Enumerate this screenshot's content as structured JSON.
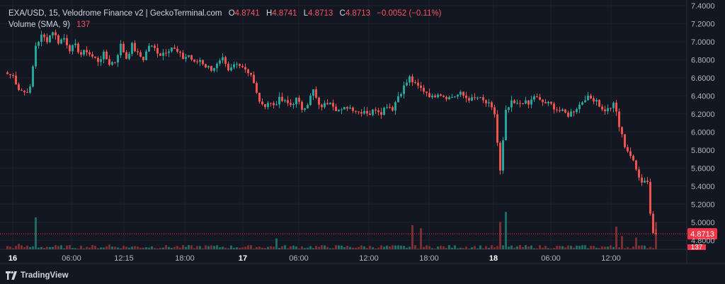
{
  "legend": {
    "symbol": "EXA/USD, 15, Velodrome Finance v2 | GeckoTerminal.com",
    "open_label": "O",
    "open": "4.8741",
    "high_label": "H",
    "high": "4.8741",
    "low_label": "L",
    "low": "4.8713",
    "close_label": "C",
    "close": "4.8713",
    "change": "−0.0052 (−0.11%)",
    "volume_label": "Volume (SMA, 9)",
    "volume_value": "137"
  },
  "footer": {
    "brand": "TradingView",
    "logo_icon": "tradingview-logo-icon"
  },
  "colors": {
    "background": "#131722",
    "grid": "#1e222d",
    "up": "#26a69a",
    "down": "#ef5350",
    "up_volume": "#1f6b64",
    "down_volume": "#7a2e33",
    "text": "#d1d4dc",
    "axis_text": "#b2b5be",
    "last_price": "#f23645"
  },
  "chart_data": {
    "type": "candlestick",
    "x_ticks": [
      "16",
      "06:00",
      "12:15",
      "18:00",
      "17",
      "06:00",
      "12:00",
      "18:00",
      "18",
      "06:00",
      "12:00"
    ],
    "x_ticks_bold": [
      "16",
      "17",
      "18"
    ],
    "y_ticks": [
      "7.4000",
      "7.2000",
      "7.0000",
      "6.8000",
      "6.6000",
      "6.4000",
      "6.2000",
      "6.0000",
      "5.8000",
      "5.6000",
      "5.4000",
      "5.2000",
      "5.0000",
      "4.8000"
    ],
    "ylim": [
      4.7,
      7.43
    ],
    "last_price": 4.8713,
    "last_price_label": "4.8713",
    "last_volume_label": "137",
    "grid": true,
    "series_anchor_closes": [
      [
        0,
        6.64
      ],
      [
        2,
        6.62
      ],
      [
        4,
        6.48
      ],
      [
        6,
        6.44
      ],
      [
        8,
        6.48
      ],
      [
        10,
        6.96
      ],
      [
        12,
        7.06
      ],
      [
        14,
        7.02
      ],
      [
        16,
        7.12
      ],
      [
        18,
        7.0
      ],
      [
        20,
        7.04
      ],
      [
        22,
        6.92
      ],
      [
        24,
        6.95
      ],
      [
        26,
        6.86
      ],
      [
        28,
        6.9
      ],
      [
        30,
        6.83
      ],
      [
        32,
        6.79
      ],
      [
        34,
        6.86
      ],
      [
        36,
        6.76
      ],
      [
        38,
        6.78
      ],
      [
        40,
        6.96
      ],
      [
        42,
        6.82
      ],
      [
        44,
        6.96
      ],
      [
        46,
        6.86
      ],
      [
        48,
        6.81
      ],
      [
        50,
        6.96
      ],
      [
        52,
        6.92
      ],
      [
        54,
        6.86
      ],
      [
        56,
        6.9
      ],
      [
        58,
        6.94
      ],
      [
        60,
        6.88
      ],
      [
        62,
        6.82
      ],
      [
        64,
        6.85
      ],
      [
        66,
        6.76
      ],
      [
        68,
        6.8
      ],
      [
        70,
        6.73
      ],
      [
        72,
        6.7
      ],
      [
        74,
        6.74
      ],
      [
        76,
        6.8
      ],
      [
        78,
        6.66
      ],
      [
        80,
        6.74
      ],
      [
        82,
        6.76
      ],
      [
        84,
        6.7
      ],
      [
        86,
        6.64
      ],
      [
        88,
        6.42
      ],
      [
        90,
        6.28
      ],
      [
        92,
        6.33
      ],
      [
        94,
        6.3
      ],
      [
        96,
        6.36
      ],
      [
        98,
        6.33
      ],
      [
        100,
        6.3
      ],
      [
        102,
        6.36
      ],
      [
        104,
        6.26
      ],
      [
        106,
        6.32
      ],
      [
        108,
        6.46
      ],
      [
        110,
        6.28
      ],
      [
        112,
        6.3
      ],
      [
        114,
        6.35
      ],
      [
        116,
        6.26
      ],
      [
        118,
        6.23
      ],
      [
        120,
        6.28
      ],
      [
        122,
        6.26
      ],
      [
        124,
        6.22
      ],
      [
        126,
        6.24
      ],
      [
        128,
        6.2
      ],
      [
        130,
        6.26
      ],
      [
        132,
        6.22
      ],
      [
        134,
        6.3
      ],
      [
        136,
        6.26
      ],
      [
        138,
        6.4
      ],
      [
        140,
        6.5
      ],
      [
        142,
        6.6
      ],
      [
        144,
        6.52
      ],
      [
        146,
        6.48
      ],
      [
        148,
        6.44
      ],
      [
        150,
        6.38
      ],
      [
        152,
        6.44
      ],
      [
        154,
        6.4
      ],
      [
        156,
        6.38
      ],
      [
        158,
        6.4
      ],
      [
        160,
        6.42
      ],
      [
        162,
        6.38
      ],
      [
        164,
        6.36
      ],
      [
        166,
        6.38
      ],
      [
        168,
        6.34
      ],
      [
        170,
        6.3
      ],
      [
        172,
        6.2
      ],
      [
        174,
        5.56
      ],
      [
        176,
        6.22
      ],
      [
        178,
        6.32
      ],
      [
        180,
        6.3
      ],
      [
        182,
        6.34
      ],
      [
        184,
        6.3
      ],
      [
        186,
        6.4
      ],
      [
        188,
        6.34
      ],
      [
        190,
        6.32
      ],
      [
        192,
        6.3
      ],
      [
        194,
        6.25
      ],
      [
        196,
        6.22
      ],
      [
        198,
        6.19
      ],
      [
        200,
        6.24
      ],
      [
        202,
        6.3
      ],
      [
        204,
        6.38
      ],
      [
        206,
        6.37
      ],
      [
        208,
        6.36
      ],
      [
        210,
        6.24
      ],
      [
        212,
        6.25
      ],
      [
        214,
        6.3
      ],
      [
        215,
        6.22
      ],
      [
        216,
        6.06
      ],
      [
        218,
        5.85
      ],
      [
        220,
        5.74
      ],
      [
        222,
        5.58
      ],
      [
        224,
        5.46
      ],
      [
        226,
        5.46
      ],
      [
        227,
        5.1
      ],
      [
        228,
        4.88
      ],
      [
        229,
        4.8741
      ]
    ],
    "volume_anchor_bars": [
      [
        4,
        0.7
      ],
      [
        10,
        4.1
      ],
      [
        36,
        0.6
      ],
      [
        72,
        0.5
      ],
      [
        95,
        1.4
      ],
      [
        143,
        3.1
      ],
      [
        146,
        2.7
      ],
      [
        174,
        3.5
      ],
      [
        176,
        4.8
      ],
      [
        215,
        2.9
      ],
      [
        217,
        1.7
      ],
      [
        222,
        1.5
      ],
      [
        229,
        3.5
      ]
    ]
  }
}
